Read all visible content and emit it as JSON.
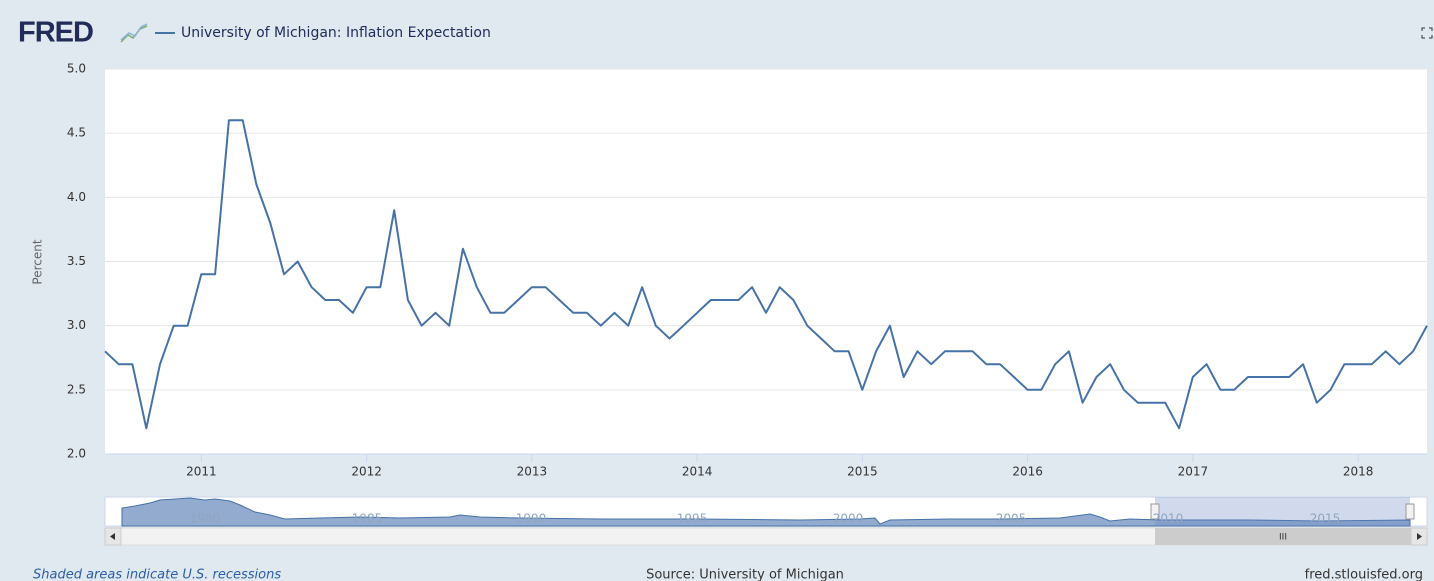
{
  "brand": "FRED",
  "chart_data": {
    "type": "line",
    "ylabel": "Percent",
    "ylim": [
      2.0,
      5.0
    ],
    "yticks": [
      {
        "value": 2.0,
        "label": "2.0"
      },
      2.5,
      {
        "value": 3.0,
        "label": "3.0"
      },
      3.5,
      {
        "value": 4.0,
        "label": "4.0"
      },
      4.5,
      {
        "value": 5.0,
        "label": "5.0"
      }
    ],
    "xlim": [
      2010.417,
      2018.417
    ],
    "xticks": [
      2011,
      2012,
      2013,
      2014,
      2015,
      2016,
      2017,
      2018
    ],
    "grid": true,
    "x": [
      2010.417,
      2010.5,
      2010.583,
      2010.667,
      2010.75,
      2010.833,
      2010.917,
      2011,
      2011.083,
      2011.167,
      2011.25,
      2011.333,
      2011.417,
      2011.5,
      2011.583,
      2011.667,
      2011.75,
      2011.833,
      2011.917,
      2012,
      2012.083,
      2012.167,
      2012.25,
      2012.333,
      2012.417,
      2012.5,
      2012.583,
      2012.667,
      2012.75,
      2012.833,
      2012.917,
      2013,
      2013.083,
      2013.167,
      2013.25,
      2013.333,
      2013.417,
      2013.5,
      2013.583,
      2013.667,
      2013.75,
      2013.833,
      2013.917,
      2014,
      2014.083,
      2014.167,
      2014.25,
      2014.333,
      2014.417,
      2014.5,
      2014.583,
      2014.667,
      2014.75,
      2014.833,
      2014.917,
      2015,
      2015.083,
      2015.167,
      2015.25,
      2015.333,
      2015.417,
      2015.5,
      2015.583,
      2015.667,
      2015.75,
      2015.833,
      2015.917,
      2016,
      2016.083,
      2016.167,
      2016.25,
      2016.333,
      2016.417,
      2016.5,
      2016.583,
      2016.667,
      2016.75,
      2016.833,
      2016.917,
      2017,
      2017.083,
      2017.167,
      2017.25,
      2017.333,
      2017.417,
      2017.5,
      2017.583,
      2017.667,
      2017.75,
      2017.833,
      2017.917,
      2018,
      2018.083,
      2018.167,
      2018.25,
      2018.333,
      2018.417
    ],
    "series": [
      {
        "name": "University of Michigan: Inflation Expectation",
        "color": "#4572a7",
        "values": [
          2.8,
          2.7,
          2.7,
          2.2,
          2.7,
          3.0,
          3.0,
          3.4,
          3.4,
          4.6,
          4.6,
          4.1,
          3.8,
          3.4,
          3.5,
          3.3,
          3.2,
          3.2,
          3.1,
          3.3,
          3.3,
          3.9,
          3.2,
          3.0,
          3.1,
          3.0,
          3.6,
          3.3,
          3.1,
          3.1,
          3.2,
          3.3,
          3.3,
          3.2,
          3.1,
          3.1,
          3.0,
          3.1,
          3.0,
          3.3,
          3.0,
          2.9,
          3.0,
          3.1,
          3.2,
          3.2,
          3.2,
          3.3,
          3.1,
          3.3,
          3.2,
          3.0,
          2.9,
          2.8,
          2.8,
          2.5,
          2.8,
          3.0,
          2.6,
          2.8,
          2.7,
          2.8,
          2.8,
          2.8,
          2.7,
          2.7,
          2.6,
          2.5,
          2.5,
          2.7,
          2.8,
          2.4,
          2.6,
          2.7,
          2.5,
          2.4,
          2.4,
          2.4,
          2.2,
          2.6,
          2.7,
          2.5,
          2.5,
          2.6,
          2.6,
          2.6,
          2.6,
          2.7,
          2.4,
          2.5,
          2.7,
          2.7,
          2.7,
          2.8,
          2.7,
          2.8,
          3.0
        ]
      }
    ]
  },
  "navigator": {
    "labels": [
      "1980",
      "1985",
      "1990",
      "1995",
      "2000",
      "2005",
      "2010",
      "2015"
    ]
  },
  "scrollbar": {
    "grip": "III"
  },
  "footer": {
    "note": "Shaded areas indicate U.S. recessions",
    "source": "Source: University of Michigan",
    "site": "fred.stlouisfed.org"
  }
}
